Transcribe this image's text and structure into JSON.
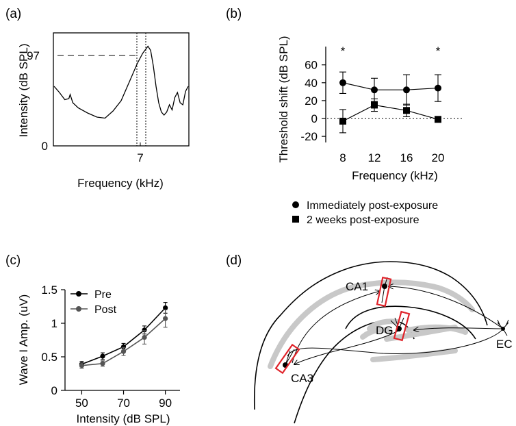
{
  "panels": {
    "a": {
      "label": "(a)"
    },
    "b": {
      "label": "(b)"
    },
    "c": {
      "label": "(c)"
    },
    "d": {
      "label": "(d)"
    }
  },
  "chart_data": [
    {
      "panel": "a",
      "type": "line",
      "xlabel": "Frequency (kHz)",
      "ylabel": "Intensity (dB SPL)",
      "xticks": [
        "7"
      ],
      "yticks": [
        "0",
        "97"
      ],
      "ylim": [
        0,
        110
      ],
      "annotations": [
        "dashed reference line at 97 dB SPL",
        "dotted vertical band around 7 kHz"
      ],
      "series": [
        {
          "x": [
            0,
            0.04,
            0.08,
            0.11,
            0.12,
            0.14,
            0.18,
            0.25,
            0.32,
            0.38,
            0.44,
            0.5,
            0.56,
            0.62,
            0.66,
            0.7,
            0.72,
            0.74,
            0.76,
            0.78,
            0.8,
            0.82,
            0.84,
            0.86,
            0.88,
            0.9,
            0.92,
            0.94,
            0.96,
            0.98,
            1.0
          ],
          "y": [
            58,
            52,
            45,
            46,
            50,
            42,
            37,
            32,
            28,
            27,
            34,
            44,
            62,
            80,
            90,
            97,
            93,
            78,
            58,
            42,
            33,
            30,
            33,
            40,
            35,
            47,
            52,
            42,
            40,
            53,
            58
          ]
        }
      ]
    },
    {
      "panel": "b",
      "type": "scatter",
      "xlabel": "Frequency (kHz)",
      "ylabel": "Threshold shift (dB SPL)",
      "categories": [
        "8",
        "12",
        "16",
        "20"
      ],
      "yticks": [
        "-20",
        "0",
        "20",
        "40",
        "60"
      ],
      "ylim": [
        -20,
        60
      ],
      "legend": [
        "Immediately post-exposure",
        "2 weeks post-exposure"
      ],
      "significance": [
        "*",
        "",
        "",
        "*"
      ],
      "series": [
        {
          "name": "Immediately post-exposure",
          "marker": "circle",
          "values": [
            40,
            32,
            32,
            34
          ],
          "err": [
            12,
            13,
            17,
            15
          ]
        },
        {
          "name": "2 weeks post-exposure",
          "marker": "square",
          "values": [
            -3,
            15,
            9,
            -1
          ],
          "err": [
            13,
            7,
            7,
            3
          ]
        }
      ]
    },
    {
      "panel": "c",
      "type": "line",
      "xlabel": "Intensity (dB SPL)",
      "ylabel": "Wave I Amp. (uV)",
      "x": [
        50,
        60,
        70,
        80,
        90
      ],
      "xticks": [
        "50",
        "70",
        "90"
      ],
      "yticks": [
        "0",
        "0.5",
        "1",
        "1.5"
      ],
      "xlim": [
        42,
        97
      ],
      "ylim": [
        0,
        1.5
      ],
      "legend": [
        "Pre",
        "Post"
      ],
      "colors": {
        "Pre": "#000000",
        "Post": "#555555"
      },
      "series": [
        {
          "name": "Pre",
          "values": [
            0.39,
            0.51,
            0.65,
            0.9,
            1.23
          ],
          "err": [
            0.04,
            0.05,
            0.05,
            0.06,
            0.08
          ]
        },
        {
          "name": "Post",
          "values": [
            0.37,
            0.4,
            0.58,
            0.79,
            1.07
          ],
          "err": [
            0.04,
            0.04,
            0.06,
            0.1,
            0.13
          ]
        }
      ]
    }
  ],
  "diagram": {
    "labels": {
      "ca1": "CA1",
      "dg": "DG",
      "ca3": "CA3",
      "ec": "EC"
    },
    "colors": {
      "box": "#e0232a",
      "band": "#c8c8c8"
    }
  }
}
